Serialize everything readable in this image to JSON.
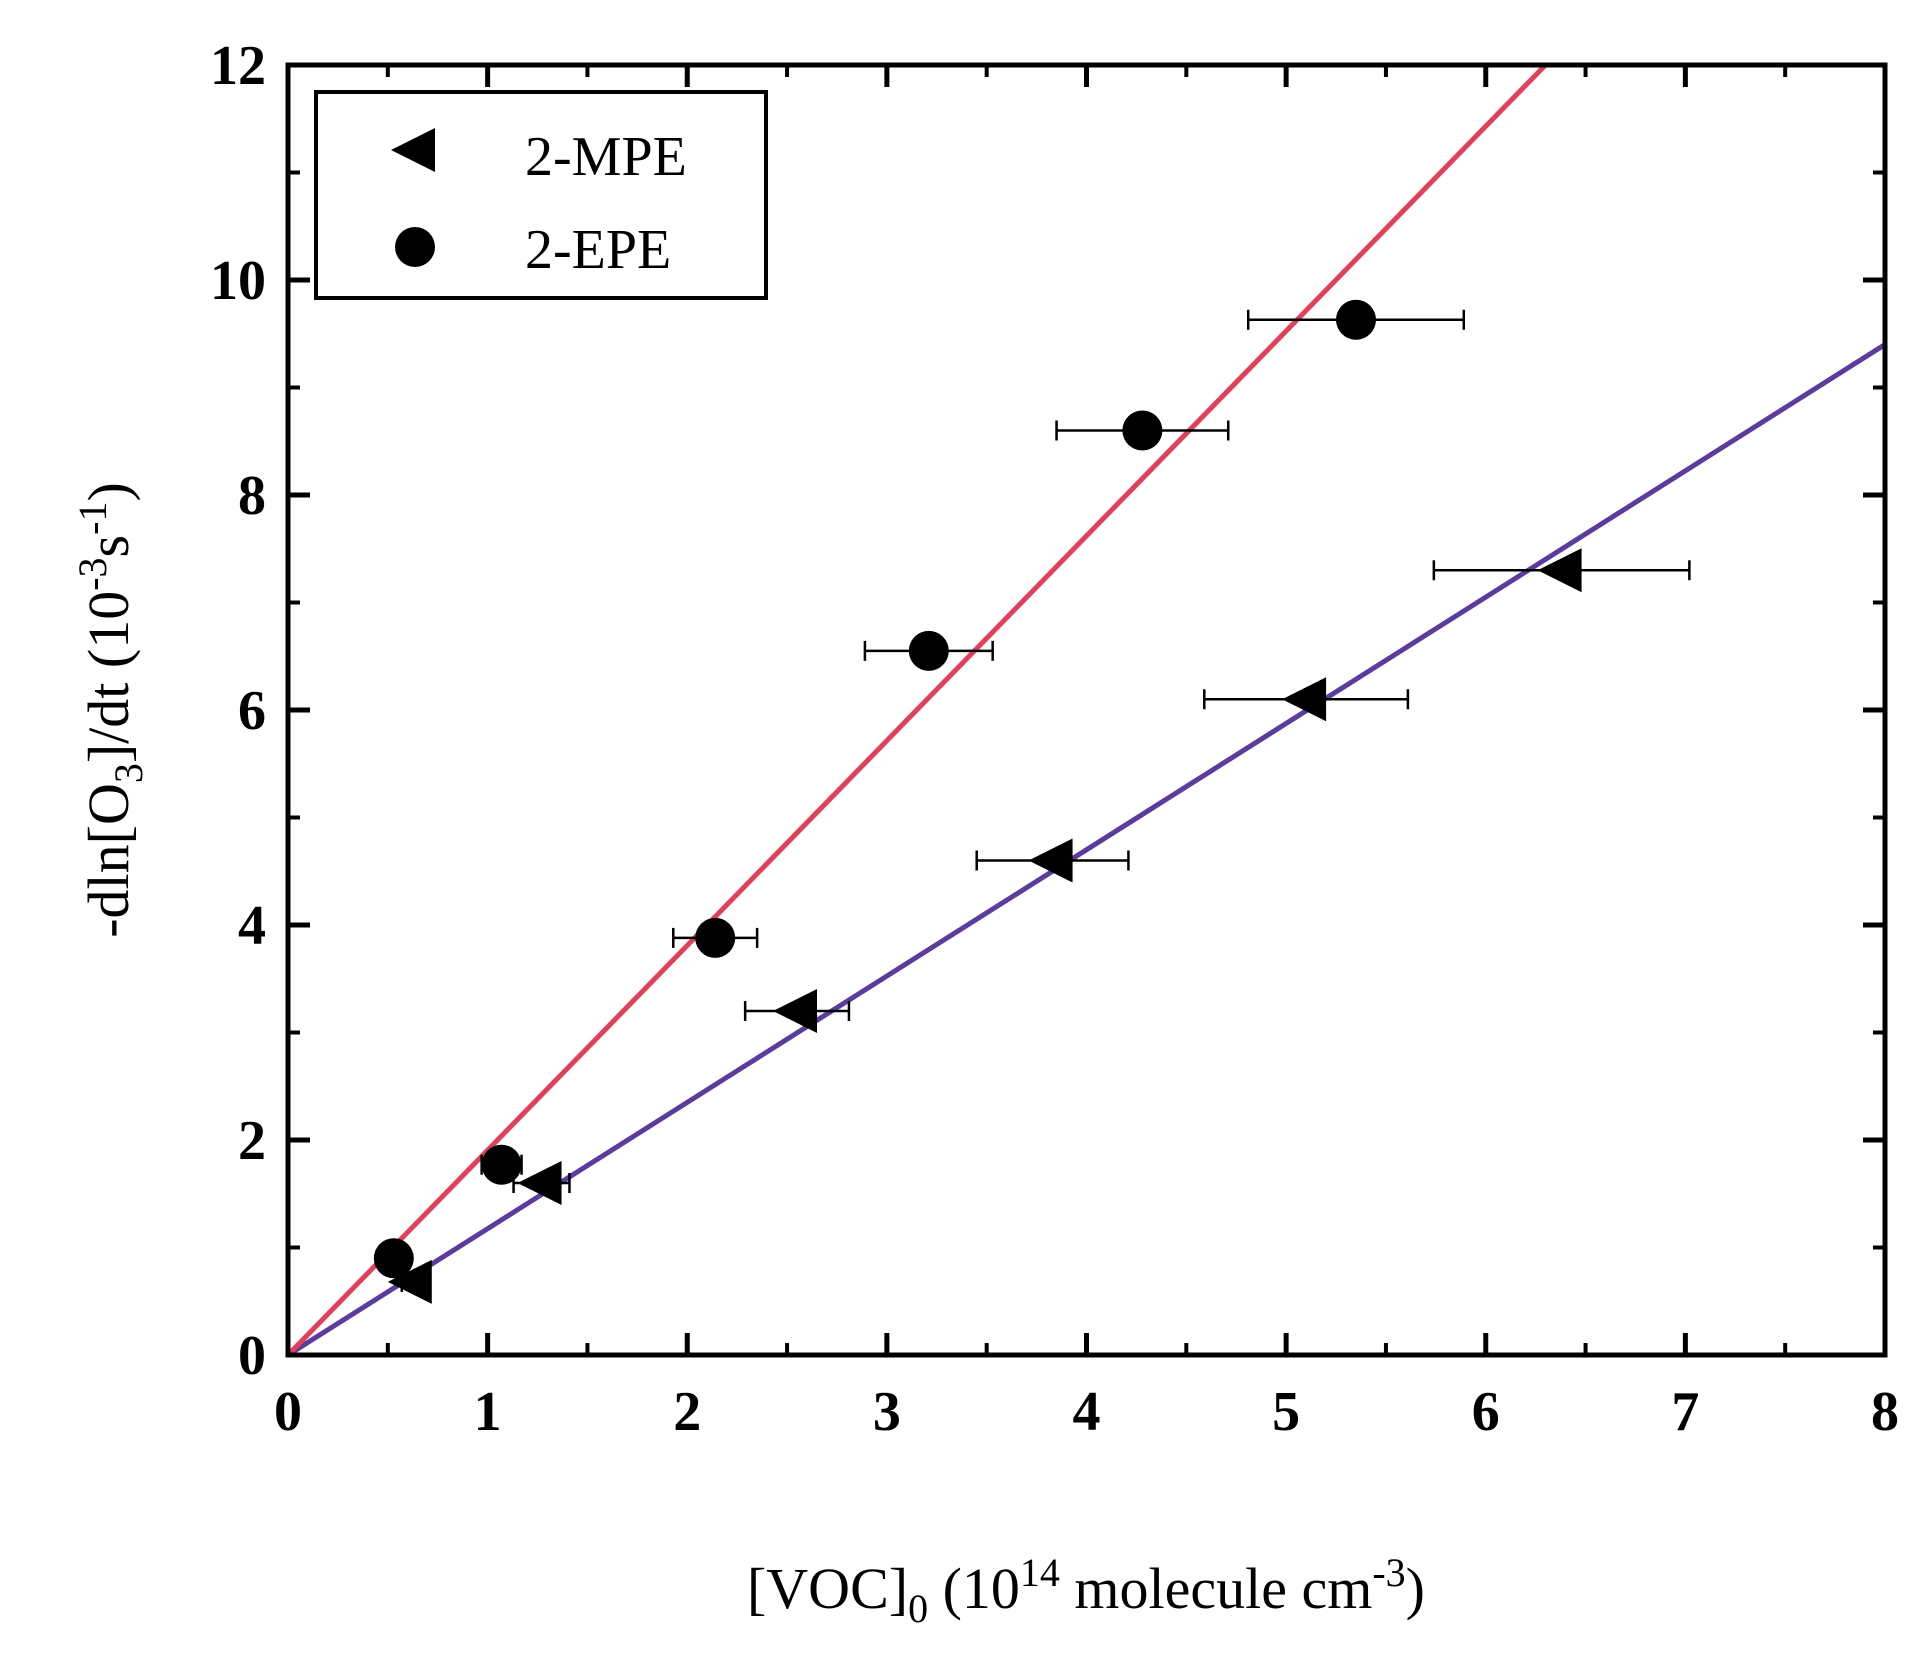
{
  "chart_data": {
    "type": "scatter",
    "title": "",
    "xlabel": {
      "prefix": "[VOC]",
      "sub": "0",
      "mid": " (10",
      "sup1": "14",
      "unit": " molecule cm",
      "sup2": "-3",
      "end": ")"
    },
    "ylabel": {
      "prefix": "-dln[O",
      "sub": "3",
      "mid": "]/dt (10",
      "sup1": "-3",
      "s": "s",
      "sup2": "-1",
      "end": ")"
    },
    "xlim": [
      0,
      8
    ],
    "ylim": [
      0,
      12
    ],
    "xticks": [
      "0",
      "1",
      "2",
      "3",
      "4",
      "5",
      "6",
      "7",
      "8"
    ],
    "yticks": [
      "0",
      "2",
      "4",
      "6",
      "8",
      "10",
      "12"
    ],
    "grid": false,
    "legend_position": "top-left",
    "series": [
      {
        "name": "2-MPE",
        "marker": "triangle-left",
        "color": "#000000",
        "fit_color": "#5b3c9e",
        "fit_slope": 1.175,
        "points": [
          {
            "x": 0.62,
            "y": 0.68,
            "xerr": 0.05
          },
          {
            "x": 1.27,
            "y": 1.6,
            "xerr": 0.14
          },
          {
            "x": 2.55,
            "y": 3.2,
            "xerr": 0.26
          },
          {
            "x": 3.83,
            "y": 4.6,
            "xerr": 0.38
          },
          {
            "x": 5.1,
            "y": 6.1,
            "xerr": 0.51
          },
          {
            "x": 6.38,
            "y": 7.3,
            "xerr": 0.64
          }
        ]
      },
      {
        "name": "2-EPE",
        "marker": "circle",
        "color": "#000000",
        "fit_color": "#e0405a",
        "fit_slope": 1.905,
        "points": [
          {
            "x": 0.53,
            "y": 0.9,
            "xerr": 0.04
          },
          {
            "x": 1.07,
            "y": 1.77,
            "xerr": 0.1
          },
          {
            "x": 2.14,
            "y": 3.88,
            "xerr": 0.21
          },
          {
            "x": 3.21,
            "y": 6.55,
            "xerr": 0.32
          },
          {
            "x": 4.28,
            "y": 8.6,
            "xerr": 0.43
          },
          {
            "x": 5.35,
            "y": 9.63,
            "xerr": 0.54
          }
        ]
      }
    ]
  }
}
